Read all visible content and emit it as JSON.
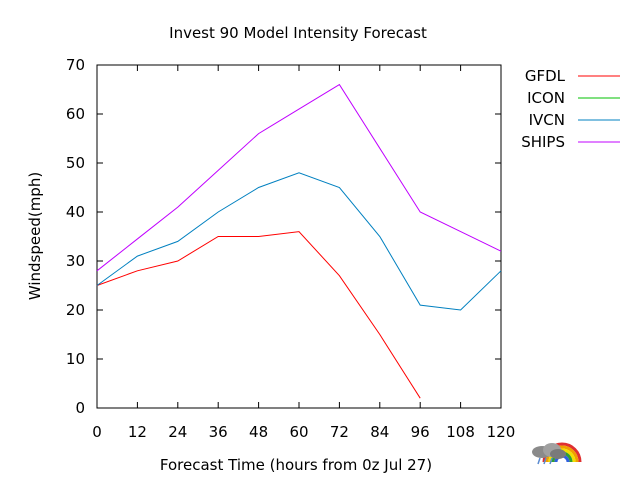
{
  "chart_data": {
    "type": "line",
    "title": "Invest 90 Model Intensity Forecast",
    "xlabel": "Forecast Time  (hours from 0z Jul 27)",
    "ylabel": "Windspeed(mph)",
    "x": [
      0,
      12,
      24,
      36,
      48,
      60,
      72,
      84,
      96,
      108,
      120
    ],
    "xlim": [
      0,
      120
    ],
    "ylim": [
      0,
      70
    ],
    "xticks": [
      "0",
      "12",
      "24",
      "36",
      "48",
      "60",
      "72",
      "84",
      "96",
      "108",
      "120"
    ],
    "yticks": [
      "0",
      "10",
      "20",
      "30",
      "40",
      "50",
      "60",
      "70"
    ],
    "grid": false,
    "legend_position": "right",
    "series": [
      {
        "name": "GFDL",
        "color": "#ff0000",
        "values": [
          25,
          28,
          30,
          35,
          35,
          36,
          27,
          15,
          2,
          null,
          null
        ]
      },
      {
        "name": "ICON",
        "color": "#00c000",
        "values": [
          null,
          null,
          null,
          null,
          null,
          null,
          null,
          null,
          null,
          null,
          null
        ]
      },
      {
        "name": "IVCN",
        "color": "#0080c0",
        "values": [
          25,
          31,
          34,
          40,
          45,
          48,
          45,
          35,
          21,
          20,
          28
        ]
      },
      {
        "name": "SHIPS",
        "color": "#c000ff",
        "values": [
          28,
          34.5,
          41,
          48.5,
          56,
          61,
          66,
          53,
          40,
          36,
          32
        ]
      }
    ]
  },
  "logo": {
    "icon": "storm-cloud-rainbow-icon"
  }
}
